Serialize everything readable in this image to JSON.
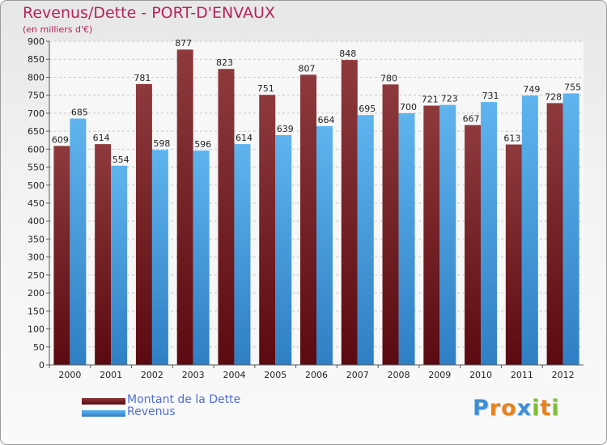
{
  "title": "Revenus/Dette - PORT-D'ENVAUX",
  "subtitle": "(en milliers d'€)",
  "legend": [
    {
      "label": "Montant de la Dette",
      "color": "#7a1f24"
    },
    {
      "label": "Revenus",
      "color": "#4aa3e2"
    }
  ],
  "logo": {
    "letters": [
      "P",
      "r",
      "o",
      "x",
      "i",
      "t",
      "i"
    ],
    "colors": [
      "#3a8fd6",
      "#e8821e",
      "#e8821e",
      "#3a8fd6",
      "#7fbf3a",
      "#e8821e",
      "#7fbf3a"
    ]
  },
  "chart_data": {
    "type": "bar",
    "title": "Revenus/Dette - PORT-D'ENVAUX",
    "subtitle": "(en milliers d'€)",
    "xlabel": "",
    "ylabel": "",
    "ylim": [
      0,
      900
    ],
    "yticks": [
      0,
      50,
      100,
      150,
      200,
      250,
      300,
      350,
      400,
      450,
      500,
      550,
      600,
      650,
      700,
      750,
      800,
      850,
      900
    ],
    "grid": true,
    "legend_position": "bottom-left",
    "categories": [
      "2000",
      "2001",
      "2002",
      "2003",
      "2004",
      "2005",
      "2006",
      "2007",
      "2008",
      "2009",
      "2010",
      "2011",
      "2012"
    ],
    "series": [
      {
        "name": "Montant de la Dette",
        "color": "#7a1f24",
        "values": [
          609,
          614,
          781,
          877,
          823,
          751,
          807,
          848,
          780,
          721,
          667,
          613,
          728
        ]
      },
      {
        "name": "Revenus",
        "color": "#4aa3e2",
        "values": [
          685,
          554,
          598,
          596,
          614,
          639,
          664,
          695,
          700,
          723,
          731,
          749,
          755
        ]
      }
    ]
  }
}
